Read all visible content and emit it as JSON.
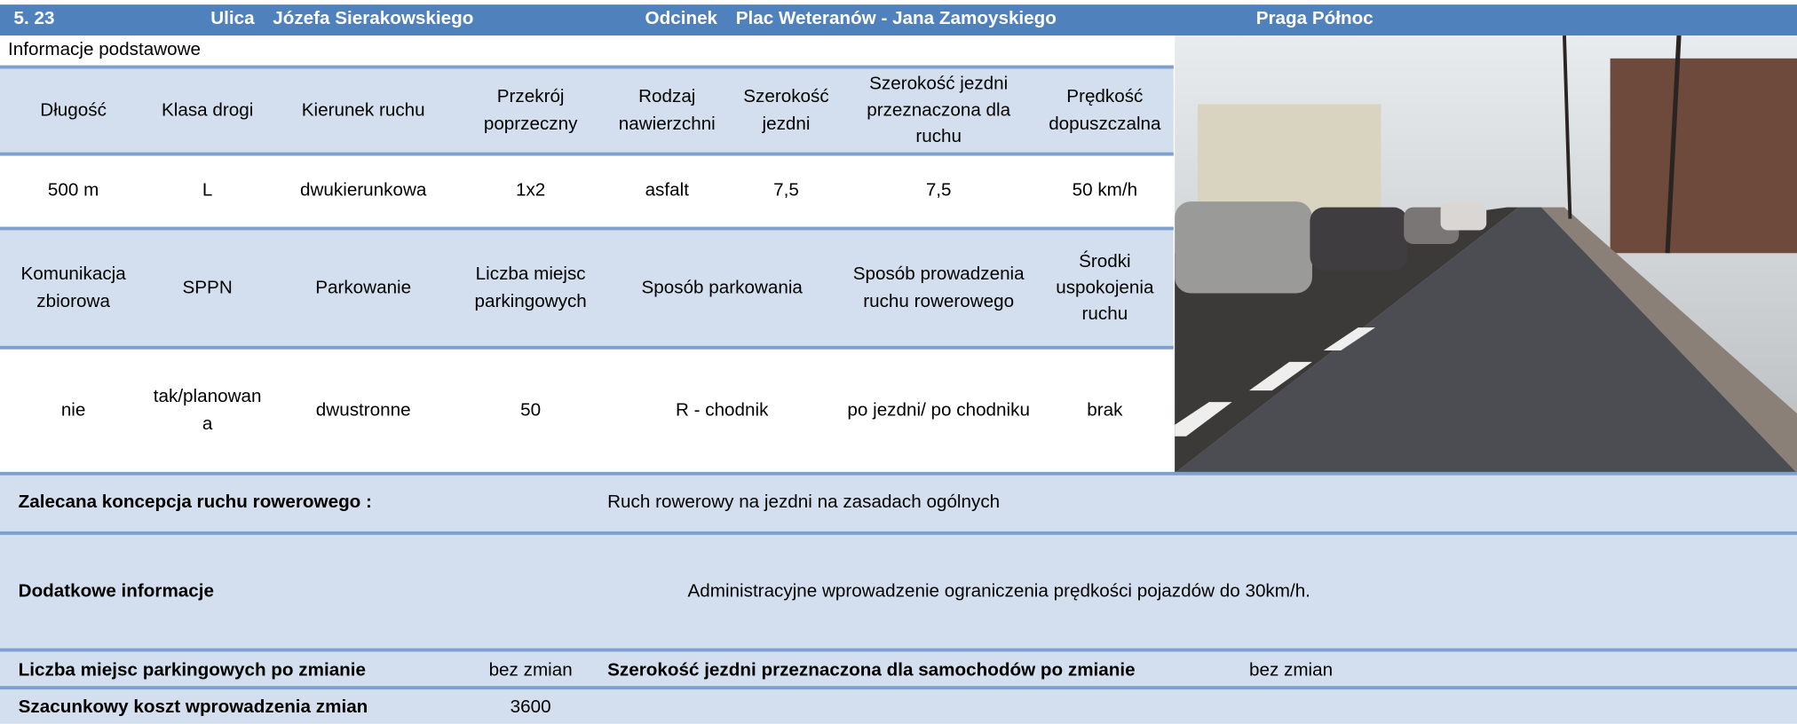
{
  "header": {
    "number": "5. 23",
    "street_label": "Ulica",
    "street": "Józefa Sierakowskiego",
    "section_label": "Odcinek",
    "section": "Plac Weteranów - Jana Zamoyskiego",
    "district": "Praga Północ"
  },
  "section_title": "Informacje podstawowe",
  "table1": {
    "headers": [
      "Długość",
      "Klasa drogi",
      "Kierunek ruchu",
      "Przekrój poprzeczny",
      "Rodzaj nawierzchni",
      "Szerokość jezdni",
      "Szerokość jezdni przeznaczona dla ruchu",
      "Prędkość dopuszczalna"
    ],
    "values": [
      "500 m",
      "L",
      "dwukierunkowa",
      "1x2",
      "asfalt",
      "7,5",
      "7,5",
      "50 km/h"
    ]
  },
  "table2": {
    "headers": [
      "Komunikacja zbiorowa",
      "SPPN",
      "Parkowanie",
      "Liczba miejsc parkingowych",
      "Sposób parkowania",
      "Sposób prowadzenia ruchu rowerowego",
      "Środki uspokojenia ruchu"
    ],
    "values": [
      "nie",
      "tak/planowana",
      "dwustronne",
      "50",
      "R - chodnik",
      "po jezdni/ po chodniku",
      "brak"
    ]
  },
  "recommendation": {
    "label": "Zalecana koncepcja ruchu rowerowego :",
    "value": "Ruch rowerowy na jezdni na zasadach ogólnych"
  },
  "additional": {
    "label": "Dodatkowe informacje",
    "value": "Administracyjne wprowadzenie ograniczenia prędkości pojazdów do 30km/h."
  },
  "parking_after": {
    "label": "Liczba miejsc parkingowych po zmianie",
    "value": "bez zmian"
  },
  "width_after": {
    "label": "Szerokość jezdni przeznaczona dla samochodów po zmianie",
    "value": "bez zmian"
  },
  "cost": {
    "label": "Szacunkowy koszt wprowadzenia zmian",
    "value": "3600"
  }
}
